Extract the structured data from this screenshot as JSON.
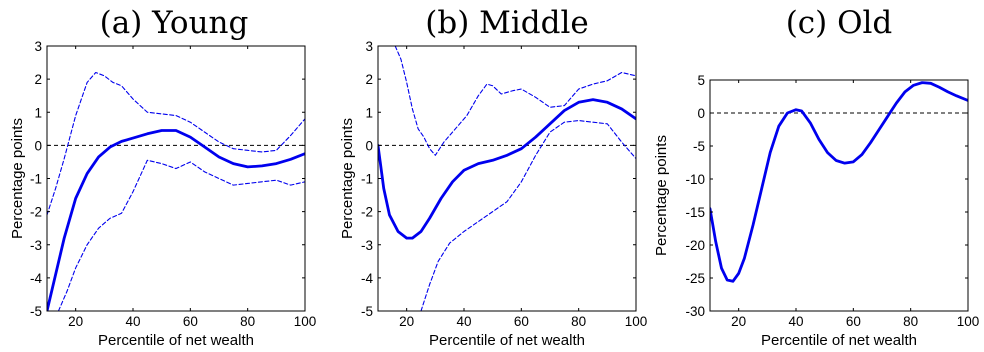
{
  "chart_data": [
    {
      "type": "line",
      "title": "(a) Young",
      "xlabel": "Percentile of net wealth",
      "ylabel": "Percentage points",
      "xlim": [
        10,
        100
      ],
      "ylim": [
        -5,
        3
      ],
      "xticks": [
        "20",
        "40",
        "60",
        "80",
        "100"
      ],
      "yticks": [
        "3",
        "2",
        "1",
        "0",
        "-1",
        "-2",
        "-3",
        "-4",
        "-5"
      ],
      "reference_line": 0,
      "grid": false,
      "line_color": "#0000ee",
      "series": [
        {
          "style": "solid",
          "x": [
            10,
            13,
            16,
            20,
            24,
            28,
            32,
            36,
            40,
            45,
            50,
            55,
            60,
            65,
            70,
            75,
            80,
            85,
            90,
            95,
            100
          ],
          "y": [
            -5.0,
            -3.9,
            -2.8,
            -1.6,
            -0.85,
            -0.35,
            -0.05,
            0.12,
            0.22,
            0.35,
            0.45,
            0.45,
            0.25,
            -0.05,
            -0.35,
            -0.55,
            -0.65,
            -0.62,
            -0.55,
            -0.42,
            -0.25
          ]
        },
        {
          "style": "dashed",
          "x": [
            10,
            13,
            16,
            20,
            24,
            27,
            30,
            33,
            36,
            40,
            45,
            50,
            55,
            60,
            65,
            70,
            75,
            80,
            85,
            90,
            95,
            100
          ],
          "y": [
            -2.1,
            -1.3,
            -0.4,
            0.9,
            1.9,
            2.2,
            2.1,
            1.9,
            1.8,
            1.4,
            1.0,
            0.95,
            0.9,
            0.7,
            0.4,
            0.1,
            -0.1,
            -0.15,
            -0.2,
            -0.15,
            0.3,
            0.8
          ]
        },
        {
          "style": "dashed",
          "x": [
            14,
            17,
            20,
            24,
            28,
            32,
            36,
            40,
            45,
            50,
            55,
            60,
            65,
            70,
            75,
            80,
            85,
            90,
            95,
            100
          ],
          "y": [
            -5.0,
            -4.4,
            -3.7,
            -3.0,
            -2.5,
            -2.2,
            -2.05,
            -1.4,
            -0.45,
            -0.55,
            -0.7,
            -0.5,
            -0.8,
            -1.0,
            -1.2,
            -1.15,
            -1.1,
            -1.05,
            -1.2,
            -1.1
          ]
        }
      ]
    },
    {
      "type": "line",
      "title": "(b) Middle",
      "xlabel": "Percentile of net wealth",
      "ylabel": "Percentage points",
      "xlim": [
        10,
        100
      ],
      "ylim": [
        -5,
        3
      ],
      "xticks": [
        "20",
        "40",
        "60",
        "80",
        "100"
      ],
      "yticks": [
        "3",
        "2",
        "1",
        "0",
        "-1",
        "-2",
        "-3",
        "-4",
        "-5"
      ],
      "reference_line": 0,
      "grid": false,
      "line_color": "#0000ee",
      "series": [
        {
          "style": "solid",
          "x": [
            10,
            12,
            14,
            17,
            20,
            22,
            25,
            28,
            32,
            36,
            40,
            45,
            50,
            55,
            60,
            65,
            70,
            75,
            80,
            85,
            90,
            95,
            100
          ],
          "y": [
            0.0,
            -1.3,
            -2.1,
            -2.6,
            -2.8,
            -2.8,
            -2.6,
            -2.2,
            -1.6,
            -1.1,
            -0.75,
            -0.55,
            -0.45,
            -0.3,
            -0.1,
            0.25,
            0.65,
            1.05,
            1.3,
            1.38,
            1.3,
            1.1,
            0.8
          ]
        },
        {
          "style": "dashed",
          "x": [
            16,
            18,
            20,
            22,
            24,
            26,
            28,
            30,
            33,
            37,
            41,
            45,
            48,
            50,
            53,
            57,
            60,
            65,
            70,
            75,
            80,
            85,
            90,
            95,
            100
          ],
          "y": [
            3.0,
            2.6,
            1.9,
            1.1,
            0.5,
            0.25,
            -0.1,
            -0.3,
            0.1,
            0.5,
            0.9,
            1.5,
            1.85,
            1.8,
            1.55,
            1.65,
            1.7,
            1.45,
            1.15,
            1.2,
            1.7,
            1.85,
            1.95,
            2.2,
            2.1
          ]
        },
        {
          "style": "dashed",
          "x": [
            25,
            28,
            31,
            35,
            40,
            45,
            50,
            55,
            60,
            65,
            70,
            75,
            80,
            85,
            90,
            95,
            100
          ],
          "y": [
            -5.0,
            -4.2,
            -3.5,
            -2.95,
            -2.6,
            -2.3,
            -2.0,
            -1.7,
            -1.1,
            -0.3,
            0.4,
            0.7,
            0.75,
            0.7,
            0.65,
            0.1,
            -0.4
          ]
        }
      ]
    },
    {
      "type": "line",
      "title": "(c) Old",
      "xlabel": "Percentile of net wealth",
      "ylabel": "Percentage points",
      "xlim": [
        10,
        100
      ],
      "ylim": [
        -30,
        5
      ],
      "xticks": [
        "20",
        "40",
        "60",
        "80",
        "100"
      ],
      "yticks": [
        "5",
        "0",
        "-5",
        "-10",
        "-15",
        "-20",
        "-25",
        "-30"
      ],
      "reference_line": 0,
      "grid": false,
      "line_color": "#0000ee",
      "series": [
        {
          "style": "solid",
          "x": [
            10,
            12,
            14,
            16,
            18,
            20,
            22,
            25,
            28,
            31,
            34,
            37,
            40,
            42,
            45,
            48,
            51,
            54,
            57,
            60,
            63,
            66,
            69,
            72,
            75,
            78,
            81,
            84,
            87,
            90,
            93,
            96,
            100
          ],
          "y": [
            -14.5,
            -19.5,
            -23.5,
            -25.3,
            -25.5,
            -24.3,
            -22.0,
            -17.0,
            -11.5,
            -6.0,
            -2.0,
            0.0,
            0.5,
            0.3,
            -1.5,
            -4.0,
            -6.0,
            -7.2,
            -7.6,
            -7.4,
            -6.3,
            -4.5,
            -2.5,
            -0.5,
            1.5,
            3.2,
            4.2,
            4.6,
            4.5,
            3.9,
            3.2,
            2.6,
            1.9
          ]
        }
      ]
    }
  ]
}
